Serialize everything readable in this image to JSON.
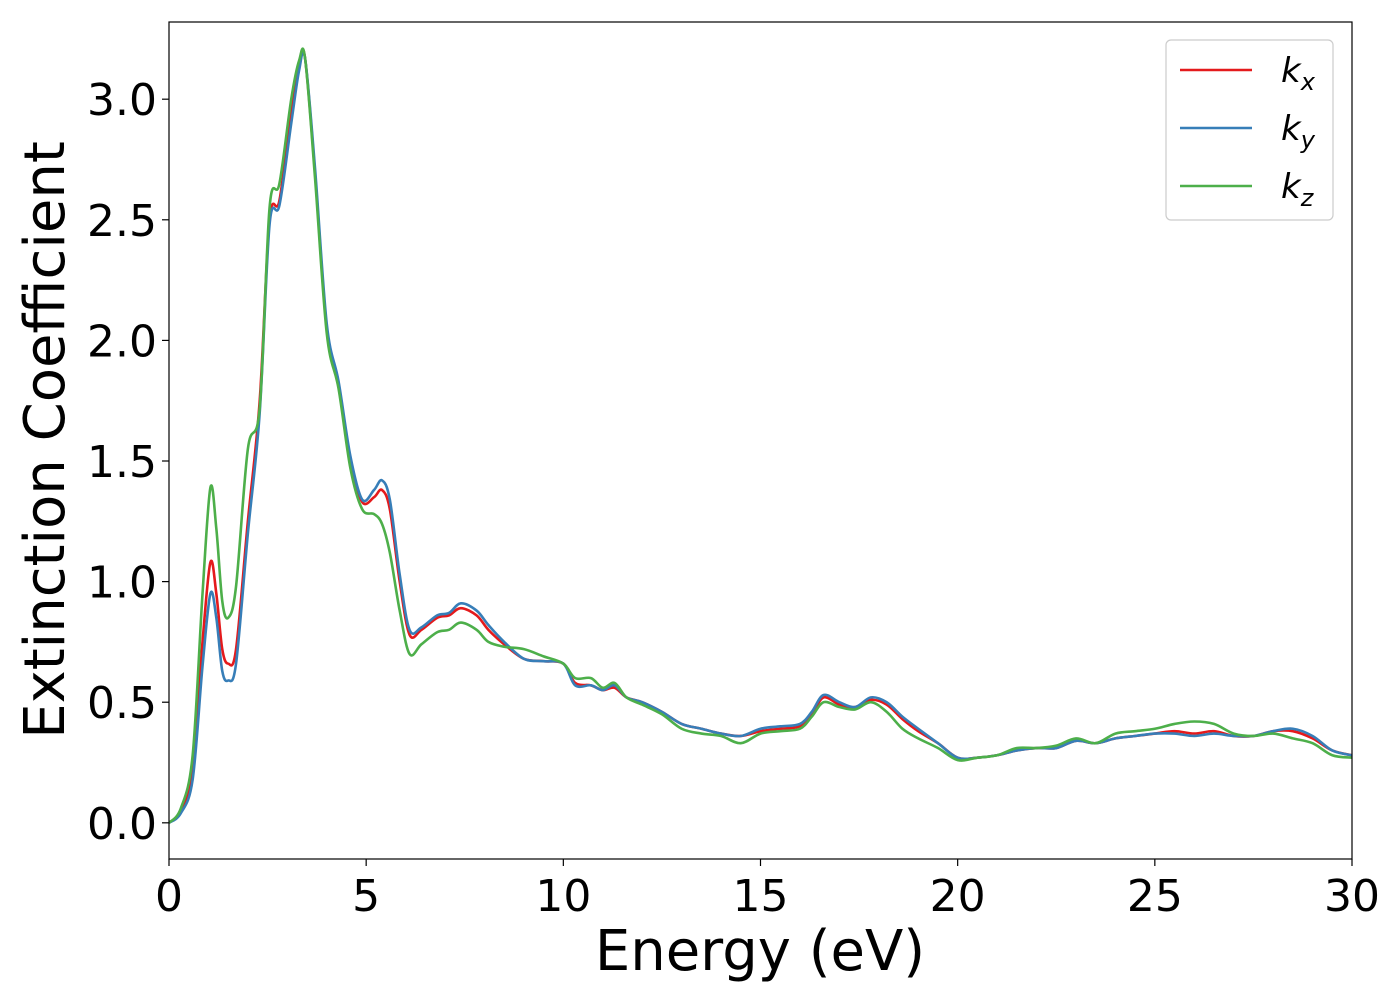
{
  "chart_data": {
    "type": "line",
    "title": "",
    "xlabel": "Energy (eV)",
    "ylabel": "Extinction Coefficient",
    "xlim": [
      0,
      30
    ],
    "ylim": [
      -0.15,
      3.32
    ],
    "xticks": [
      0,
      5,
      10,
      15,
      20,
      25,
      30
    ],
    "xtick_labels": [
      "0",
      "5",
      "10",
      "15",
      "20",
      "25",
      "30"
    ],
    "yticks": [
      0.0,
      0.5,
      1.0,
      1.5,
      2.0,
      2.5,
      3.0
    ],
    "ytick_labels": [
      "0.0",
      "0.5",
      "1.0",
      "1.5",
      "2.0",
      "2.5",
      "3.0"
    ],
    "grid": false,
    "legend_position": "top-right",
    "series": [
      {
        "name": "k_x",
        "label_base": "k",
        "label_sub": "x",
        "color": "#e41a1c",
        "points": [
          [
            0,
            0.0
          ],
          [
            0.3,
            0.05
          ],
          [
            0.6,
            0.22
          ],
          [
            0.85,
            0.75
          ],
          [
            1.05,
            1.08
          ],
          [
            1.2,
            0.95
          ],
          [
            1.35,
            0.72
          ],
          [
            1.5,
            0.66
          ],
          [
            1.7,
            0.72
          ],
          [
            2.0,
            1.25
          ],
          [
            2.3,
            1.75
          ],
          [
            2.55,
            2.5
          ],
          [
            2.8,
            2.58
          ],
          [
            3.1,
            2.95
          ],
          [
            3.3,
            3.15
          ],
          [
            3.45,
            3.17
          ],
          [
            3.7,
            2.7
          ],
          [
            4.0,
            2.05
          ],
          [
            4.3,
            1.82
          ],
          [
            4.6,
            1.5
          ],
          [
            4.9,
            1.33
          ],
          [
            5.2,
            1.35
          ],
          [
            5.4,
            1.38
          ],
          [
            5.6,
            1.3
          ],
          [
            5.85,
            1.0
          ],
          [
            6.1,
            0.78
          ],
          [
            6.4,
            0.8
          ],
          [
            6.8,
            0.85
          ],
          [
            7.1,
            0.86
          ],
          [
            7.4,
            0.89
          ],
          [
            7.8,
            0.86
          ],
          [
            8.1,
            0.8
          ],
          [
            8.5,
            0.74
          ],
          [
            9.0,
            0.68
          ],
          [
            9.5,
            0.67
          ],
          [
            10.0,
            0.66
          ],
          [
            10.3,
            0.58
          ],
          [
            10.7,
            0.57
          ],
          [
            11.0,
            0.55
          ],
          [
            11.3,
            0.56
          ],
          [
            11.6,
            0.52
          ],
          [
            12.0,
            0.5
          ],
          [
            12.5,
            0.46
          ],
          [
            13.0,
            0.41
          ],
          [
            13.5,
            0.39
          ],
          [
            14.0,
            0.37
          ],
          [
            14.5,
            0.36
          ],
          [
            15.0,
            0.38
          ],
          [
            15.5,
            0.39
          ],
          [
            16.0,
            0.4
          ],
          [
            16.3,
            0.45
          ],
          [
            16.6,
            0.52
          ],
          [
            17.0,
            0.49
          ],
          [
            17.4,
            0.48
          ],
          [
            17.8,
            0.51
          ],
          [
            18.2,
            0.49
          ],
          [
            18.6,
            0.43
          ],
          [
            19.0,
            0.38
          ],
          [
            19.5,
            0.33
          ],
          [
            20.0,
            0.27
          ],
          [
            20.5,
            0.27
          ],
          [
            21.0,
            0.28
          ],
          [
            21.5,
            0.3
          ],
          [
            22.0,
            0.31
          ],
          [
            22.5,
            0.31
          ],
          [
            23.0,
            0.34
          ],
          [
            23.5,
            0.33
          ],
          [
            24.0,
            0.35
          ],
          [
            24.5,
            0.36
          ],
          [
            25.0,
            0.37
          ],
          [
            25.5,
            0.38
          ],
          [
            26.0,
            0.37
          ],
          [
            26.5,
            0.38
          ],
          [
            27.0,
            0.36
          ],
          [
            27.5,
            0.36
          ],
          [
            28.0,
            0.38
          ],
          [
            28.5,
            0.38
          ],
          [
            29.0,
            0.35
          ],
          [
            29.5,
            0.3
          ],
          [
            30.0,
            0.28
          ]
        ]
      },
      {
        "name": "k_y",
        "label_base": "k",
        "label_sub": "y",
        "color": "#377eb8",
        "points": [
          [
            0,
            0.0
          ],
          [
            0.3,
            0.04
          ],
          [
            0.6,
            0.18
          ],
          [
            0.85,
            0.65
          ],
          [
            1.05,
            0.95
          ],
          [
            1.2,
            0.85
          ],
          [
            1.35,
            0.63
          ],
          [
            1.5,
            0.59
          ],
          [
            1.7,
            0.66
          ],
          [
            2.0,
            1.2
          ],
          [
            2.3,
            1.7
          ],
          [
            2.55,
            2.48
          ],
          [
            2.8,
            2.56
          ],
          [
            3.1,
            2.9
          ],
          [
            3.3,
            3.12
          ],
          [
            3.45,
            3.17
          ],
          [
            3.7,
            2.72
          ],
          [
            4.0,
            2.07
          ],
          [
            4.3,
            1.83
          ],
          [
            4.6,
            1.52
          ],
          [
            4.9,
            1.34
          ],
          [
            5.2,
            1.38
          ],
          [
            5.4,
            1.42
          ],
          [
            5.6,
            1.34
          ],
          [
            5.85,
            1.03
          ],
          [
            6.1,
            0.8
          ],
          [
            6.4,
            0.81
          ],
          [
            6.8,
            0.86
          ],
          [
            7.1,
            0.87
          ],
          [
            7.4,
            0.91
          ],
          [
            7.8,
            0.88
          ],
          [
            8.1,
            0.82
          ],
          [
            8.5,
            0.75
          ],
          [
            9.0,
            0.68
          ],
          [
            9.5,
            0.67
          ],
          [
            10.0,
            0.66
          ],
          [
            10.3,
            0.57
          ],
          [
            10.7,
            0.57
          ],
          [
            11.0,
            0.55
          ],
          [
            11.3,
            0.57
          ],
          [
            11.6,
            0.52
          ],
          [
            12.0,
            0.5
          ],
          [
            12.5,
            0.46
          ],
          [
            13.0,
            0.41
          ],
          [
            13.5,
            0.39
          ],
          [
            14.0,
            0.37
          ],
          [
            14.5,
            0.36
          ],
          [
            15.0,
            0.39
          ],
          [
            15.5,
            0.4
          ],
          [
            16.0,
            0.41
          ],
          [
            16.3,
            0.46
          ],
          [
            16.6,
            0.53
          ],
          [
            17.0,
            0.5
          ],
          [
            17.4,
            0.48
          ],
          [
            17.8,
            0.52
          ],
          [
            18.2,
            0.5
          ],
          [
            18.6,
            0.44
          ],
          [
            19.0,
            0.39
          ],
          [
            19.5,
            0.33
          ],
          [
            20.0,
            0.27
          ],
          [
            20.5,
            0.27
          ],
          [
            21.0,
            0.28
          ],
          [
            21.5,
            0.3
          ],
          [
            22.0,
            0.31
          ],
          [
            22.5,
            0.31
          ],
          [
            23.0,
            0.34
          ],
          [
            23.5,
            0.33
          ],
          [
            24.0,
            0.35
          ],
          [
            24.5,
            0.36
          ],
          [
            25.0,
            0.37
          ],
          [
            25.5,
            0.37
          ],
          [
            26.0,
            0.36
          ],
          [
            26.5,
            0.37
          ],
          [
            27.0,
            0.36
          ],
          [
            27.5,
            0.36
          ],
          [
            28.0,
            0.38
          ],
          [
            28.5,
            0.39
          ],
          [
            29.0,
            0.36
          ],
          [
            29.5,
            0.3
          ],
          [
            30.0,
            0.28
          ]
        ]
      },
      {
        "name": "k_z",
        "label_base": "k",
        "label_sub": "z",
        "color": "#4daf4a",
        "points": [
          [
            0,
            0.0
          ],
          [
            0.3,
            0.06
          ],
          [
            0.6,
            0.28
          ],
          [
            0.85,
            0.95
          ],
          [
            1.05,
            1.39
          ],
          [
            1.2,
            1.22
          ],
          [
            1.35,
            0.92
          ],
          [
            1.5,
            0.85
          ],
          [
            1.7,
            0.98
          ],
          [
            2.0,
            1.55
          ],
          [
            2.3,
            1.72
          ],
          [
            2.55,
            2.55
          ],
          [
            2.8,
            2.65
          ],
          [
            3.1,
            3.0
          ],
          [
            3.3,
            3.16
          ],
          [
            3.45,
            3.17
          ],
          [
            3.7,
            2.68
          ],
          [
            4.0,
            2.03
          ],
          [
            4.3,
            1.8
          ],
          [
            4.6,
            1.47
          ],
          [
            4.9,
            1.3
          ],
          [
            5.2,
            1.28
          ],
          [
            5.4,
            1.24
          ],
          [
            5.6,
            1.12
          ],
          [
            5.85,
            0.88
          ],
          [
            6.1,
            0.7
          ],
          [
            6.4,
            0.74
          ],
          [
            6.8,
            0.79
          ],
          [
            7.1,
            0.8
          ],
          [
            7.4,
            0.83
          ],
          [
            7.8,
            0.8
          ],
          [
            8.1,
            0.75
          ],
          [
            8.5,
            0.73
          ],
          [
            9.0,
            0.72
          ],
          [
            9.5,
            0.69
          ],
          [
            10.0,
            0.66
          ],
          [
            10.3,
            0.6
          ],
          [
            10.7,
            0.6
          ],
          [
            11.0,
            0.56
          ],
          [
            11.3,
            0.58
          ],
          [
            11.6,
            0.52
          ],
          [
            12.0,
            0.49
          ],
          [
            12.5,
            0.45
          ],
          [
            13.0,
            0.39
          ],
          [
            13.5,
            0.37
          ],
          [
            14.0,
            0.36
          ],
          [
            14.5,
            0.33
          ],
          [
            15.0,
            0.37
          ],
          [
            15.5,
            0.38
          ],
          [
            16.0,
            0.39
          ],
          [
            16.3,
            0.44
          ],
          [
            16.6,
            0.5
          ],
          [
            17.0,
            0.48
          ],
          [
            17.4,
            0.47
          ],
          [
            17.8,
            0.5
          ],
          [
            18.2,
            0.46
          ],
          [
            18.6,
            0.39
          ],
          [
            19.0,
            0.35
          ],
          [
            19.5,
            0.31
          ],
          [
            20.0,
            0.26
          ],
          [
            20.5,
            0.27
          ],
          [
            21.0,
            0.28
          ],
          [
            21.5,
            0.31
          ],
          [
            22.0,
            0.31
          ],
          [
            22.5,
            0.32
          ],
          [
            23.0,
            0.35
          ],
          [
            23.5,
            0.33
          ],
          [
            24.0,
            0.37
          ],
          [
            24.5,
            0.38
          ],
          [
            25.0,
            0.39
          ],
          [
            25.5,
            0.41
          ],
          [
            26.0,
            0.42
          ],
          [
            26.5,
            0.41
          ],
          [
            27.0,
            0.37
          ],
          [
            27.5,
            0.36
          ],
          [
            28.0,
            0.37
          ],
          [
            28.5,
            0.35
          ],
          [
            29.0,
            0.33
          ],
          [
            29.5,
            0.28
          ],
          [
            30.0,
            0.27
          ]
        ]
      }
    ]
  }
}
